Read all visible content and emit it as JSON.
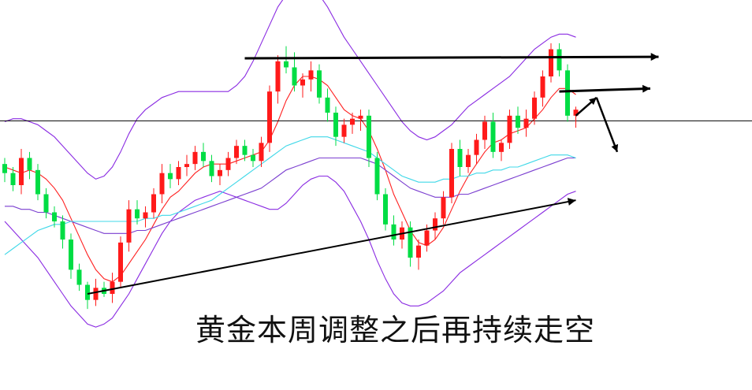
{
  "chart_data": {
    "type": "candlestick",
    "title": "",
    "xlabel": "",
    "ylabel": "",
    "ylim": [
      0,
      100
    ],
    "annotation_text": "黄金本周调整之后再持续走空",
    "colors": {
      "up": "#ff1a1a",
      "down": "#00dd44",
      "ma_red": "#ff2020",
      "ma_purple": "#7b3fd0",
      "ma_cyan": "#40d8e8",
      "band": "#8a2be2",
      "trendline": "#000000",
      "reference_line": "#000000"
    },
    "candles": [
      [
        56,
        58,
        50,
        53
      ],
      [
        53,
        55,
        47,
        49
      ],
      [
        49,
        61,
        46,
        58
      ],
      [
        58,
        60,
        51,
        54
      ],
      [
        54,
        56,
        44,
        46
      ],
      [
        46,
        48,
        38,
        40
      ],
      [
        40,
        42,
        35,
        37
      ],
      [
        37,
        39,
        28,
        31
      ],
      [
        31,
        33,
        18,
        21
      ],
      [
        21,
        23,
        14,
        16
      ],
      [
        16,
        17,
        8,
        11
      ],
      [
        11,
        18,
        9,
        15
      ],
      [
        15,
        17,
        12,
        13
      ],
      [
        13,
        20,
        10,
        17
      ],
      [
        17,
        32,
        15,
        30
      ],
      [
        30,
        44,
        27,
        41
      ],
      [
        41,
        44,
        36,
        38
      ],
      [
        38,
        42,
        35,
        40
      ],
      [
        40,
        48,
        38,
        46
      ],
      [
        46,
        56,
        43,
        53
      ],
      [
        53,
        56,
        48,
        51
      ],
      [
        51,
        57,
        49,
        55
      ],
      [
        55,
        59,
        52,
        56
      ],
      [
        56,
        62,
        54,
        60
      ],
      [
        60,
        63,
        55,
        57
      ],
      [
        57,
        59,
        50,
        52
      ],
      [
        52,
        56,
        49,
        54
      ],
      [
        54,
        60,
        52,
        58
      ],
      [
        58,
        64,
        56,
        62
      ],
      [
        62,
        64,
        57,
        59
      ],
      [
        59,
        61,
        55,
        57
      ],
      [
        57,
        65,
        55,
        63
      ],
      [
        63,
        82,
        60,
        80
      ],
      [
        80,
        92,
        76,
        90
      ],
      [
        90,
        95,
        86,
        88
      ],
      [
        88,
        93,
        80,
        82
      ],
      [
        82,
        86,
        78,
        84
      ],
      [
        84,
        90,
        80,
        87
      ],
      [
        87,
        89,
        76,
        78
      ],
      [
        78,
        81,
        70,
        73
      ],
      [
        73,
        75,
        62,
        65
      ],
      [
        65,
        71,
        63,
        69
      ],
      [
        69,
        73,
        66,
        71
      ],
      [
        71,
        74,
        67,
        72
      ],
      [
        72,
        74,
        55,
        58
      ],
      [
        58,
        60,
        44,
        46
      ],
      [
        46,
        48,
        34,
        36
      ],
      [
        36,
        39,
        29,
        31
      ],
      [
        31,
        37,
        28,
        35
      ],
      [
        35,
        37,
        22,
        25
      ],
      [
        25,
        31,
        21,
        29
      ],
      [
        29,
        36,
        27,
        34
      ],
      [
        34,
        40,
        31,
        38
      ],
      [
        38,
        47,
        36,
        45
      ],
      [
        45,
        63,
        43,
        61
      ],
      [
        61,
        64,
        52,
        55
      ],
      [
        55,
        61,
        53,
        59
      ],
      [
        59,
        66,
        56,
        64
      ],
      [
        64,
        72,
        61,
        70
      ],
      [
        70,
        73,
        58,
        60
      ],
      [
        60,
        64,
        57,
        63
      ],
      [
        63,
        74,
        61,
        72
      ],
      [
        72,
        75,
        66,
        68
      ],
      [
        68,
        74,
        65,
        71
      ],
      [
        71,
        80,
        69,
        78
      ],
      [
        78,
        87,
        75,
        85
      ],
      [
        85,
        96,
        83,
        94
      ],
      [
        94,
        96,
        85,
        87
      ],
      [
        87,
        89,
        70,
        72
      ],
      [
        72,
        75,
        68,
        74
      ]
    ],
    "moving_averages": [
      {
        "name": "",
        "color": "#ff2020",
        "values": [
          55,
          54,
          53,
          54,
          53,
          51,
          48,
          44,
          38,
          32,
          26,
          21,
          18,
          17,
          19,
          23,
          27,
          31,
          36,
          41,
          45,
          47,
          50,
          53,
          55,
          56,
          56,
          56,
          57,
          58,
          59,
          60,
          64,
          70,
          77,
          82,
          85,
          85,
          84,
          82,
          78,
          74,
          72,
          71,
          67,
          61,
          54,
          46,
          40,
          34,
          30,
          29,
          31,
          35,
          41,
          47,
          52,
          56,
          60,
          63,
          64,
          66,
          67,
          68,
          71,
          74,
          78,
          81,
          81,
          79
        ]
      },
      {
        "name": "",
        "color": "#7b3fd0",
        "values": [
          42,
          42,
          41,
          41,
          40,
          40,
          39,
          38,
          37,
          36,
          35,
          34,
          33,
          33,
          33,
          33,
          34,
          34,
          35,
          36,
          37,
          38,
          39,
          40,
          41,
          42,
          43,
          44,
          45,
          46,
          47,
          48,
          50,
          52,
          54,
          55,
          56,
          57,
          58,
          58,
          58,
          58,
          58,
          58,
          57,
          56,
          54,
          52,
          50,
          48,
          47,
          46,
          45,
          45,
          45,
          46,
          46,
          47,
          48,
          49,
          50,
          51,
          52,
          53,
          54,
          55,
          56,
          57,
          58,
          58
        ]
      },
      {
        "name": "",
        "color": "#40d8e8",
        "values": [
          26,
          28,
          30,
          32,
          34,
          35,
          36,
          36,
          37,
          37,
          37,
          37,
          37,
          37,
          37,
          37,
          37,
          38,
          38,
          39,
          39,
          40,
          41,
          42,
          43,
          44,
          46,
          48,
          50,
          52,
          54,
          56,
          58,
          60,
          62,
          63,
          64,
          65,
          65,
          65,
          64,
          63,
          62,
          61,
          60,
          58,
          56,
          54,
          52,
          51,
          50,
          50,
          50,
          51,
          51,
          52,
          52,
          53,
          53,
          54,
          54,
          55,
          55,
          56,
          57,
          58,
          59,
          59,
          59,
          58
        ]
      }
    ],
    "bollinger_bands": {
      "color": "#8a2be2",
      "upper": [
        70,
        71,
        71,
        70,
        69,
        67,
        65,
        62,
        59,
        56,
        53,
        51,
        52,
        55,
        60,
        66,
        71,
        74,
        76,
        78,
        79,
        80,
        80,
        80,
        80,
        80,
        80,
        80,
        82,
        85,
        90,
        96,
        102,
        108,
        112,
        114,
        115,
        114,
        112,
        108,
        103,
        98,
        94,
        90,
        86,
        82,
        78,
        74,
        70,
        67,
        65,
        64,
        65,
        67,
        69,
        72,
        75,
        77,
        79,
        81,
        83,
        85,
        88,
        91,
        94,
        96,
        98,
        99,
        99,
        98
      ],
      "lower": [
        37,
        34,
        31,
        28,
        25,
        21,
        17,
        13,
        9,
        6,
        3,
        2,
        3,
        5,
        9,
        13,
        18,
        23,
        28,
        33,
        37,
        40,
        42,
        44,
        45,
        46,
        47,
        46,
        45,
        44,
        43,
        42,
        41,
        41,
        43,
        46,
        49,
        51,
        52,
        52,
        50,
        47,
        42,
        37,
        31,
        24,
        18,
        13,
        10,
        9,
        9,
        10,
        12,
        14,
        17,
        20,
        22,
        24,
        26,
        28,
        30,
        32,
        34,
        36,
        38,
        40,
        42,
        44,
        46,
        47
      ]
    },
    "horizontal_reference_y": 70.3,
    "trendlines": [
      {
        "from": [
          10,
          13
        ],
        "to": [
          69,
          44
        ],
        "arrow": true,
        "width": 2
      },
      {
        "from": [
          29,
          91
        ],
        "to": [
          79,
          91.5
        ],
        "arrow": true,
        "width": 3
      },
      {
        "from": [
          67,
          80
        ],
        "to": [
          78,
          81
        ],
        "arrow": true,
        "width": 3
      }
    ],
    "projection_arrows": [
      {
        "from": [
          69,
          72
        ],
        "to": [
          71.5,
          78
        ]
      },
      {
        "from": [
          71.5,
          78
        ],
        "to": [
          74,
          60
        ]
      }
    ]
  }
}
